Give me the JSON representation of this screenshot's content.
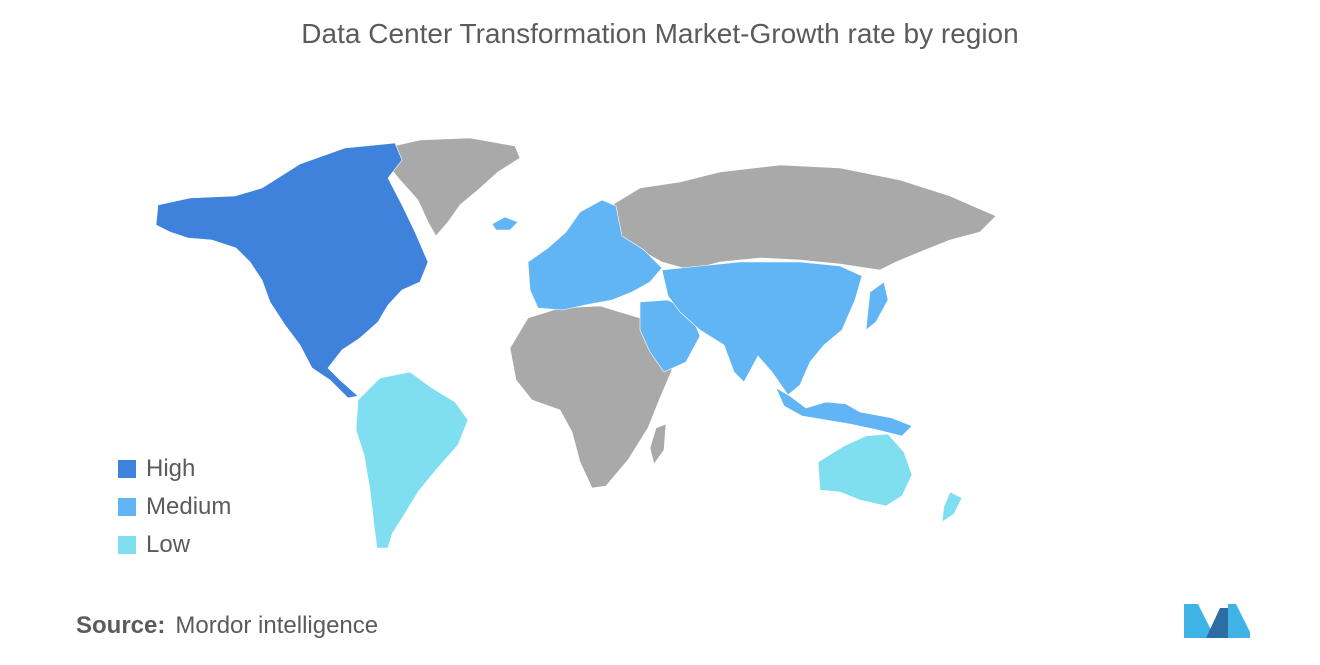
{
  "title": "Data Center Transformation Market-Growth rate by region",
  "legend": {
    "items": [
      {
        "label": "High",
        "color": "#3f82db"
      },
      {
        "label": "Medium",
        "color": "#62b5f5"
      },
      {
        "label": "Low",
        "color": "#7fdff0"
      }
    ]
  },
  "map": {
    "no_data_color": "#a9a9a9",
    "regions": [
      {
        "name": "North America",
        "level": "High"
      },
      {
        "name": "Europe",
        "level": "Medium"
      },
      {
        "name": "Asia-Pacific",
        "level": "Medium"
      },
      {
        "name": "Middle East",
        "level": "Medium"
      },
      {
        "name": "Latin America",
        "level": "Low"
      },
      {
        "name": "Australia and New Zealand",
        "level": "Low"
      }
    ]
  },
  "source": {
    "label": "Source:",
    "text": "Mordor intelligence"
  },
  "logo": {
    "colors": [
      "#3fb3e6",
      "#2e6da4"
    ]
  }
}
